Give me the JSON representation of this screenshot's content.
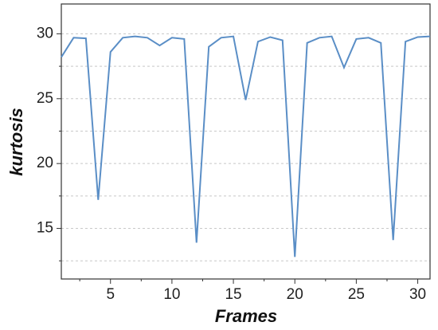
{
  "chart_data": {
    "type": "line",
    "x_label": "Frames",
    "y_label": "kurtosis",
    "x": [
      1,
      2,
      3,
      4,
      5,
      6,
      7,
      8,
      9,
      10,
      11,
      12,
      13,
      14,
      15,
      16,
      17,
      18,
      19,
      20,
      21,
      22,
      23,
      24,
      25,
      26,
      27,
      28,
      29,
      30,
      31
    ],
    "series": [
      {
        "color": "#5a8ec6",
        "values": [
          28.2,
          29.7,
          29.65,
          17.2,
          28.6,
          29.7,
          29.8,
          29.7,
          29.1,
          29.7,
          29.6,
          13.9,
          29.0,
          29.7,
          29.8,
          24.9,
          29.4,
          29.75,
          29.5,
          12.8,
          29.3,
          29.7,
          29.8,
          27.4,
          29.6,
          29.7,
          29.3,
          14.1,
          29.4,
          29.75,
          29.8
        ]
      }
    ],
    "xlim": [
      1,
      31
    ],
    "xticks": [
      5,
      10,
      15,
      20,
      25,
      30
    ],
    "xminor": [
      2.5,
      7.5,
      12.5,
      17.5,
      22.5,
      27.5
    ],
    "ylim": [
      11.1,
      32.3
    ],
    "yticks": [
      15,
      20,
      25,
      30
    ],
    "yminor": [
      12.5,
      17.5,
      22.5,
      27.5
    ],
    "grid": true
  }
}
